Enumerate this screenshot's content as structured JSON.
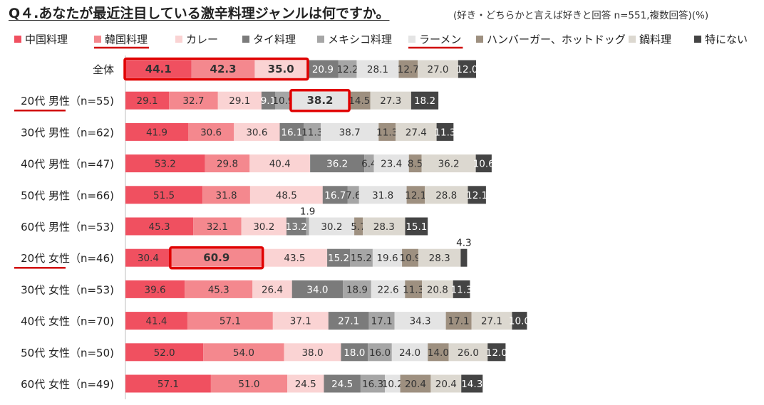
{
  "title": "Q４.あなたが最近注目している激辛料理ジャンルは何ですか。",
  "subtitle": "(好き・どちらかと言えば好きと回答 n=551,複数回答)(%)",
  "chart_data": {
    "type": "bar",
    "orientation": "horizontal",
    "stacked": true,
    "legend_position": "top",
    "series": [
      {
        "name": "中国料理",
        "color": "#f05060",
        "label_color": "#333333"
      },
      {
        "name": "韓国料理",
        "color": "#f4888e",
        "label_color": "#333333"
      },
      {
        "name": "カレー",
        "color": "#fad3d3",
        "label_color": "#333333"
      },
      {
        "name": "タイ料理",
        "color": "#7b7b7b",
        "label_color": "#ffffff"
      },
      {
        "name": "メキシコ料理",
        "color": "#a6a6a6",
        "label_color": "#333333"
      },
      {
        "name": "ラーメン",
        "color": "#e4e4e4",
        "label_color": "#333333"
      },
      {
        "name": "ハンバーガー、ホットドッグ",
        "color": "#9e9080",
        "label_color": "#333333"
      },
      {
        "name": "鍋料理",
        "color": "#dcd8d0",
        "label_color": "#333333"
      },
      {
        "name": "特にない",
        "color": "#444444",
        "label_color": "#ffffff"
      }
    ],
    "categories": [
      "全体",
      "20代 男性（n=55)",
      "30代 男性（n=62)",
      "40代 男性（n=47)",
      "50代 男性（n=66)",
      "60代 男性（n=53)",
      "20代 女性（n=46)",
      "30代 女性（n=53)",
      "40代 女性（n=70)",
      "50代 女性（n=50)",
      "60代 女性（n=49)"
    ],
    "values": [
      [
        44.1,
        42.3,
        35.0,
        20.9,
        12.2,
        28.1,
        12.7,
        27.0,
        12.0
      ],
      [
        29.1,
        32.7,
        29.1,
        9.1,
        10.9,
        38.2,
        14.5,
        27.3,
        18.2
      ],
      [
        41.9,
        30.6,
        30.6,
        16.1,
        11.3,
        38.7,
        11.3,
        27.4,
        11.3
      ],
      [
        53.2,
        29.8,
        40.4,
        36.2,
        6.4,
        23.4,
        8.5,
        36.2,
        10.6
      ],
      [
        51.5,
        31.8,
        48.5,
        16.7,
        7.6,
        31.8,
        12.1,
        28.8,
        12.1
      ],
      [
        45.3,
        32.1,
        30.2,
        13.2,
        1.9,
        30.2,
        5.7,
        28.3,
        15.1
      ],
      [
        30.4,
        60.9,
        43.5,
        15.2,
        15.2,
        19.6,
        10.9,
        28.3,
        4.3
      ],
      [
        39.6,
        45.3,
        26.4,
        34.0,
        18.9,
        22.6,
        11.3,
        20.8,
        11.3
      ],
      [
        41.4,
        57.1,
        37.1,
        27.1,
        17.1,
        34.3,
        17.1,
        27.1,
        10.0
      ],
      [
        52.0,
        54.0,
        38.0,
        18.0,
        16.0,
        24.0,
        14.0,
        26.0,
        12.0
      ],
      [
        57.1,
        51.0,
        24.5,
        24.5,
        16.3,
        10.2,
        20.4,
        20.4,
        14.3
      ]
    ],
    "highlight_boxes": [
      [
        0,
        0
      ],
      [
        0,
        1
      ],
      [
        0,
        2
      ],
      [
        1,
        5
      ],
      [
        6,
        1
      ]
    ],
    "underlined_legend": [
      1,
      5
    ],
    "underlined_categories": [
      1,
      6
    ],
    "underline_color": "#d00000",
    "highlight_color": "#e00000",
    "outside_labels": [
      [
        5,
        4
      ],
      [
        6,
        8
      ]
    ]
  }
}
